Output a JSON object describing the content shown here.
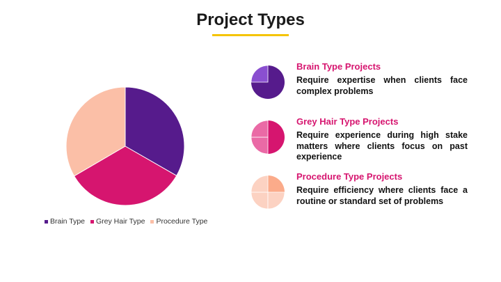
{
  "slide": {
    "title": "Project Types",
    "accent_color": "#f5c400"
  },
  "chart_data": {
    "type": "pie",
    "slices": [
      {
        "label": "Brain Type",
        "value": 33.3,
        "color": "#561b8c"
      },
      {
        "label": "Grey Hair Type",
        "value": 33.3,
        "color": "#d6156f"
      },
      {
        "label": "Procedure Type",
        "value": 33.4,
        "color": "#fbbfa7"
      }
    ],
    "legend_position": "bottom"
  },
  "cards": [
    {
      "title": "Brain Type Projects",
      "description": "Require expertise when clients face complex problems",
      "title_color": "#d6156f",
      "icon": "brain-type-pie-icon",
      "icon_main_color": "#561b8c",
      "icon_accent_color": "#8a4fd0"
    },
    {
      "title": "Grey Hair Type Projects",
      "description": "Require experience during high stake matters where clients focus on past experience",
      "title_color": "#d6156f",
      "icon": "grey-hair-pie-icon",
      "icon_main_color": "#d6156f",
      "icon_accent_color": "#ea6aa6"
    },
    {
      "title": "Procedure Type Projects",
      "description": "Require efficiency where clients face a routine or standard set of problems",
      "title_color": "#d6156f",
      "icon": "procedure-type-pie-icon",
      "icon_main_color": "#fbab8a",
      "icon_accent_color": "#fcd2c2"
    }
  ]
}
